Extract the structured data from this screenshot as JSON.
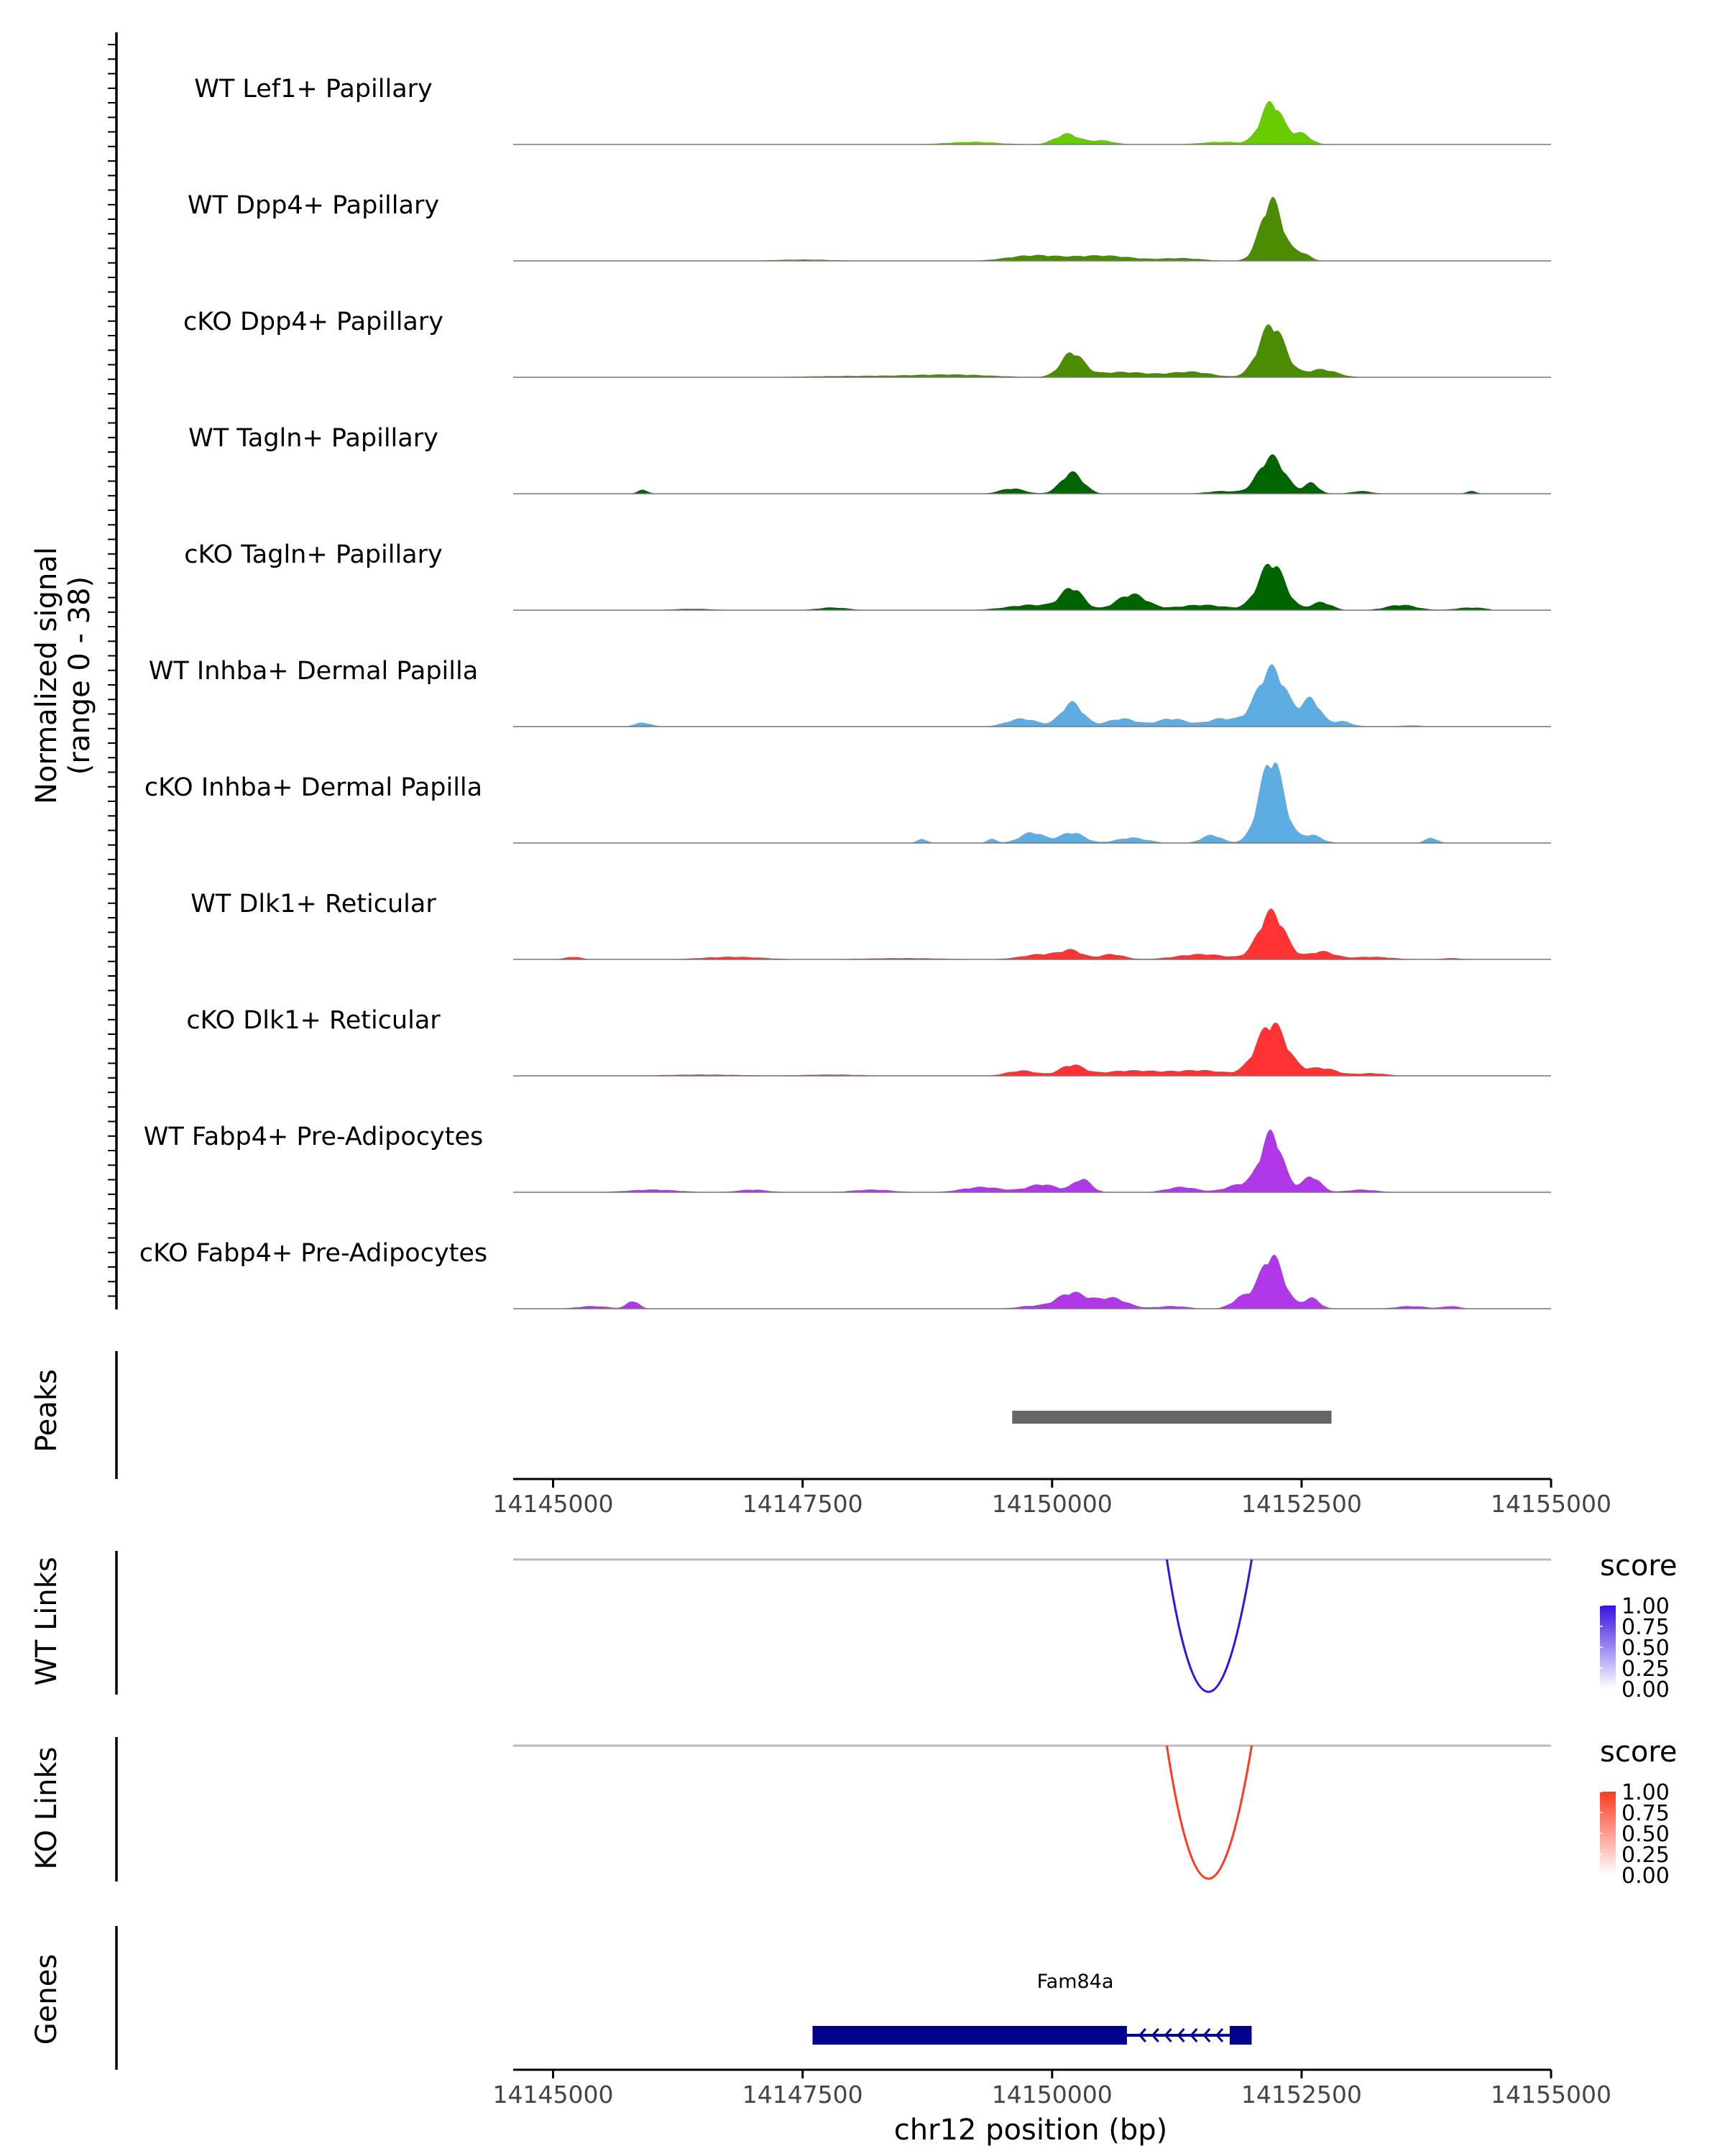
{
  "chart_data": {
    "type": "area",
    "title": "",
    "genome_range": [
      14144600,
      14155000
    ],
    "xlabel": "chr12 position (bp)",
    "x_ticks": [
      "14145000",
      "14147500",
      "14150000",
      "14152500",
      "14155000"
    ],
    "coverage": {
      "ylabel": "Normalized signal",
      "ylabel_range": "(range 0 - 38)",
      "ylim": [
        0,
        38
      ],
      "tracks": [
        {
          "name": "WT Lef1+ Papillary",
          "color": "#66CC00",
          "peaks": [
            [
              14150150,
              4,
              120
            ],
            [
              14150500,
              1.5,
              120
            ],
            [
              14152200,
              16,
              110
            ],
            [
              14152500,
              4,
              90
            ],
            [
              14149200,
              1,
              250
            ],
            [
              14151700,
              1,
              200
            ]
          ]
        },
        {
          "name": "WT Dpp4+ Papillary",
          "color": "#4C8C00",
          "peaks": [
            [
              14149800,
              2,
              250
            ],
            [
              14150500,
              2,
              300
            ],
            [
              14152200,
              23,
              110
            ],
            [
              14152500,
              3,
              80
            ],
            [
              14147500,
              0.5,
              300
            ],
            [
              14151300,
              1,
              200
            ]
          ]
        },
        {
          "name": "cKO Dpp4+ Papillary",
          "color": "#4C8C00",
          "peaks": [
            [
              14150200,
              9,
              110
            ],
            [
              14150700,
              2,
              300
            ],
            [
              14152200,
              20,
              130
            ],
            [
              14152700,
              3,
              150
            ],
            [
              14149000,
              1,
              400
            ],
            [
              14148000,
              0.5,
              500
            ],
            [
              14151400,
              2,
              200
            ]
          ]
        },
        {
          "name": "WT Tagln+ Papillary",
          "color": "#006400",
          "peaks": [
            [
              14145900,
              1.5,
              50
            ],
            [
              14149600,
              2,
              120
            ],
            [
              14150200,
              8,
              110
            ],
            [
              14151700,
              1,
              150
            ],
            [
              14152200,
              14,
              130
            ],
            [
              14152600,
              4,
              70
            ],
            [
              14153100,
              1,
              100
            ],
            [
              14154200,
              1,
              50
            ]
          ]
        },
        {
          "name": "cKO Tagln+ Papillary",
          "color": "#006400",
          "peaks": [
            [
              14146400,
              0.5,
              200
            ],
            [
              14147800,
              1,
              150
            ],
            [
              14149800,
              2,
              250
            ],
            [
              14150200,
              8,
              110
            ],
            [
              14150800,
              6,
              150
            ],
            [
              14151500,
              2,
              250
            ],
            [
              14152200,
              18,
              130
            ],
            [
              14152700,
              3,
              100
            ],
            [
              14153500,
              2,
              150
            ],
            [
              14154200,
              1,
              150
            ]
          ]
        },
        {
          "name": "WT Inhba+ Dermal Papilla",
          "color": "#5DADE2",
          "peaks": [
            [
              14145900,
              1.5,
              80
            ],
            [
              14149700,
              3,
              150
            ],
            [
              14150200,
              9,
              110
            ],
            [
              14150700,
              3,
              150
            ],
            [
              14151200,
              3,
              150
            ],
            [
              14151700,
              3,
              150
            ],
            [
              14152200,
              22,
              150
            ],
            [
              14152600,
              10,
              90
            ],
            [
              14152900,
              2,
              100
            ],
            [
              14153600,
              0.5,
              100
            ]
          ]
        },
        {
          "name": "cKO Inhba+ Dermal Papilla",
          "color": "#5DADE2",
          "peaks": [
            [
              14148700,
              1.5,
              50
            ],
            [
              14149400,
              1.5,
              50
            ],
            [
              14149800,
              4,
              120
            ],
            [
              14150200,
              4,
              120
            ],
            [
              14150800,
              2,
              150
            ],
            [
              14151600,
              3,
              100
            ],
            [
              14152200,
              32,
              120
            ],
            [
              14152600,
              3,
              100
            ],
            [
              14153800,
              2,
              60
            ]
          ]
        },
        {
          "name": "WT Dlk1+ Reticular",
          "color": "#FF3333",
          "peaks": [
            [
              14145200,
              1,
              80
            ],
            [
              14146800,
              1,
              300
            ],
            [
              14148500,
              0.5,
              400
            ],
            [
              14149900,
              2,
              200
            ],
            [
              14150200,
              3,
              110
            ],
            [
              14150600,
              2,
              120
            ],
            [
              14151500,
              2,
              250
            ],
            [
              14152200,
              18,
              130
            ],
            [
              14152700,
              3,
              130
            ],
            [
              14153200,
              1,
              200
            ],
            [
              14154000,
              0.5,
              100
            ]
          ]
        },
        {
          "name": "cKO Dlk1+ Reticular",
          "color": "#FF3333",
          "peaks": [
            [
              14146500,
              0.5,
              400
            ],
            [
              14147800,
              0.5,
              300
            ],
            [
              14149700,
              2,
              150
            ],
            [
              14150200,
              4,
              120
            ],
            [
              14150800,
              2,
              300
            ],
            [
              14151500,
              2,
              250
            ],
            [
              14152200,
              20,
              150
            ],
            [
              14152700,
              3,
              150
            ],
            [
              14153200,
              1,
              150
            ]
          ]
        },
        {
          "name": "WT Fabp4+ Pre-Adipocytes",
          "color": "#B038E8",
          "peaks": [
            [
              14146000,
              1,
              250
            ],
            [
              14147000,
              1,
              150
            ],
            [
              14148200,
              1,
              200
            ],
            [
              14149300,
              2,
              200
            ],
            [
              14149900,
              3,
              150
            ],
            [
              14150300,
              5,
              90
            ],
            [
              14151300,
              2,
              150
            ],
            [
              14151900,
              3,
              150
            ],
            [
              14152200,
              22,
              110
            ],
            [
              14152600,
              6,
              90
            ],
            [
              14153100,
              1,
              150
            ]
          ]
        },
        {
          "name": "cKO Fabp4+ Pre-Adipocytes",
          "color": "#B038E8",
          "peaks": [
            [
              14145400,
              1,
              150
            ],
            [
              14145800,
              3,
              60
            ],
            [
              14149800,
              1,
              150
            ],
            [
              14150200,
              6,
              150
            ],
            [
              14150600,
              4,
              150
            ],
            [
              14151200,
              1,
              150
            ],
            [
              14151900,
              4,
              100
            ],
            [
              14152200,
              20,
              120
            ],
            [
              14152600,
              4,
              80
            ],
            [
              14153600,
              1,
              150
            ],
            [
              14154000,
              1,
              80
            ]
          ]
        }
      ]
    },
    "peaks_track": {
      "label": "Peaks",
      "regions": [
        [
          14149600,
          14152800
        ]
      ]
    },
    "links": [
      {
        "label": "WT Links",
        "color": "#3A12E0",
        "start": 14151150,
        "end": 14152000,
        "score": 1.0,
        "legend_title": "score",
        "legend_ticks": [
          "1.00",
          "0.75",
          "0.50",
          "0.25",
          "0.00"
        ]
      },
      {
        "label": "KO Links",
        "color": "#FF3B1F",
        "start": 14151150,
        "end": 14152000,
        "score": 1.0,
        "legend_title": "score",
        "legend_ticks": [
          "1.00",
          "0.75",
          "0.50",
          "0.25",
          "0.00"
        ]
      }
    ],
    "genes_track": {
      "label": "Genes",
      "genes": [
        {
          "name": "Fam84a",
          "start": 14147600,
          "end": 14152000,
          "strand": "-",
          "exons": [
            [
              14147600,
              14150750
            ],
            [
              14151780,
              14152000
            ]
          ],
          "color": "#00008B"
        }
      ]
    }
  }
}
